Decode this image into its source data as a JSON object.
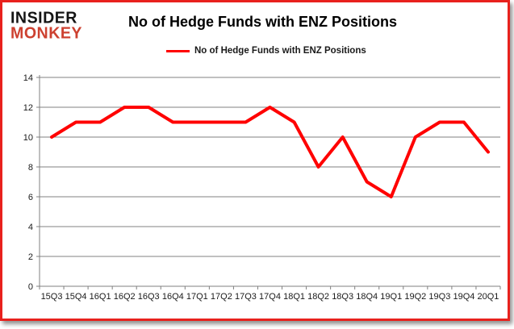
{
  "logo": {
    "line1": "INSIDER",
    "line2": "MONKEY"
  },
  "header": {
    "title": "No of Hedge Funds with ENZ Positions"
  },
  "legend": {
    "label": "No of Hedge Funds with ENZ Positions",
    "color": "#ff0000"
  },
  "colors": {
    "series_red": "#ff0000",
    "logo_red": "#cd4130",
    "frame_border_red": "#e8211d",
    "gridline_gray": "#808080",
    "label_text": "#1a1a1a"
  },
  "chart_data": {
    "type": "line",
    "title": "No of Hedge Funds with ENZ Positions",
    "categories": [
      "15Q3",
      "15Q4",
      "16Q1",
      "16Q2",
      "16Q3",
      "16Q4",
      "17Q1",
      "17Q2",
      "17Q3",
      "17Q4",
      "18Q1",
      "18Q2",
      "18Q3",
      "18Q4",
      "19Q1",
      "19Q2",
      "19Q3",
      "19Q4",
      "20Q1"
    ],
    "series": [
      {
        "name": "No of Hedge Funds with ENZ Positions",
        "color": "#ff0000",
        "values": [
          10,
          11,
          11,
          12,
          12,
          11,
          11,
          11,
          11,
          12,
          11,
          8,
          10,
          7,
          6,
          10,
          11,
          11,
          9
        ]
      }
    ],
    "xlabel": "",
    "ylabel": "",
    "ylim": [
      0,
      14
    ],
    "yticks": [
      0,
      2,
      4,
      6,
      8,
      10,
      12,
      14
    ],
    "grid": true,
    "legend_position": "top"
  }
}
